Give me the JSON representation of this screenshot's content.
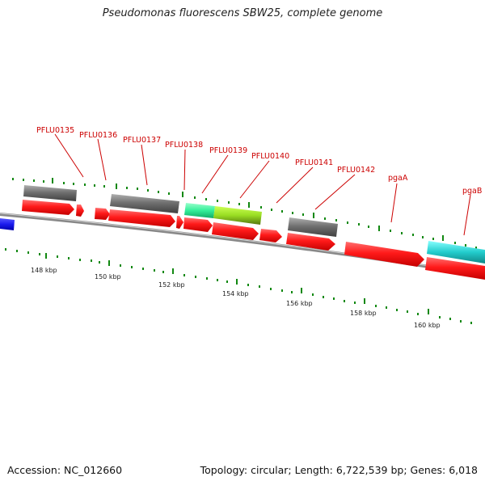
{
  "title": "Pseudomonas fluorescens SBW25, complete genome",
  "footer": {
    "accession": "Accession: NC_012660",
    "info": "Topology: circular; Length: 6,722,539 bp; Genes: 6,018"
  },
  "colors": {
    "cds": "#ff1a1a",
    "gray_feature": "#707070",
    "green_feature": "#33ee99",
    "lime_feature": "#99dd22",
    "cyan_feature": "#22cccc",
    "blue_feature": "#1a1aee",
    "label": "#cc0000",
    "tick": "#118811",
    "backbone": "#888888"
  },
  "scale_labels": [
    "148 kbp",
    "150 kbp",
    "152 kbp",
    "154 kbp",
    "156 kbp",
    "158 kbp",
    "160 kbp"
  ],
  "gene_labels": [
    "PFLU0135",
    "PFLU0136",
    "PFLU0137",
    "PFLU0138",
    "PFLU0139",
    "PFLU0140",
    "PFLU0141",
    "PFLU0142",
    "pgaA",
    "pgaB"
  ]
}
